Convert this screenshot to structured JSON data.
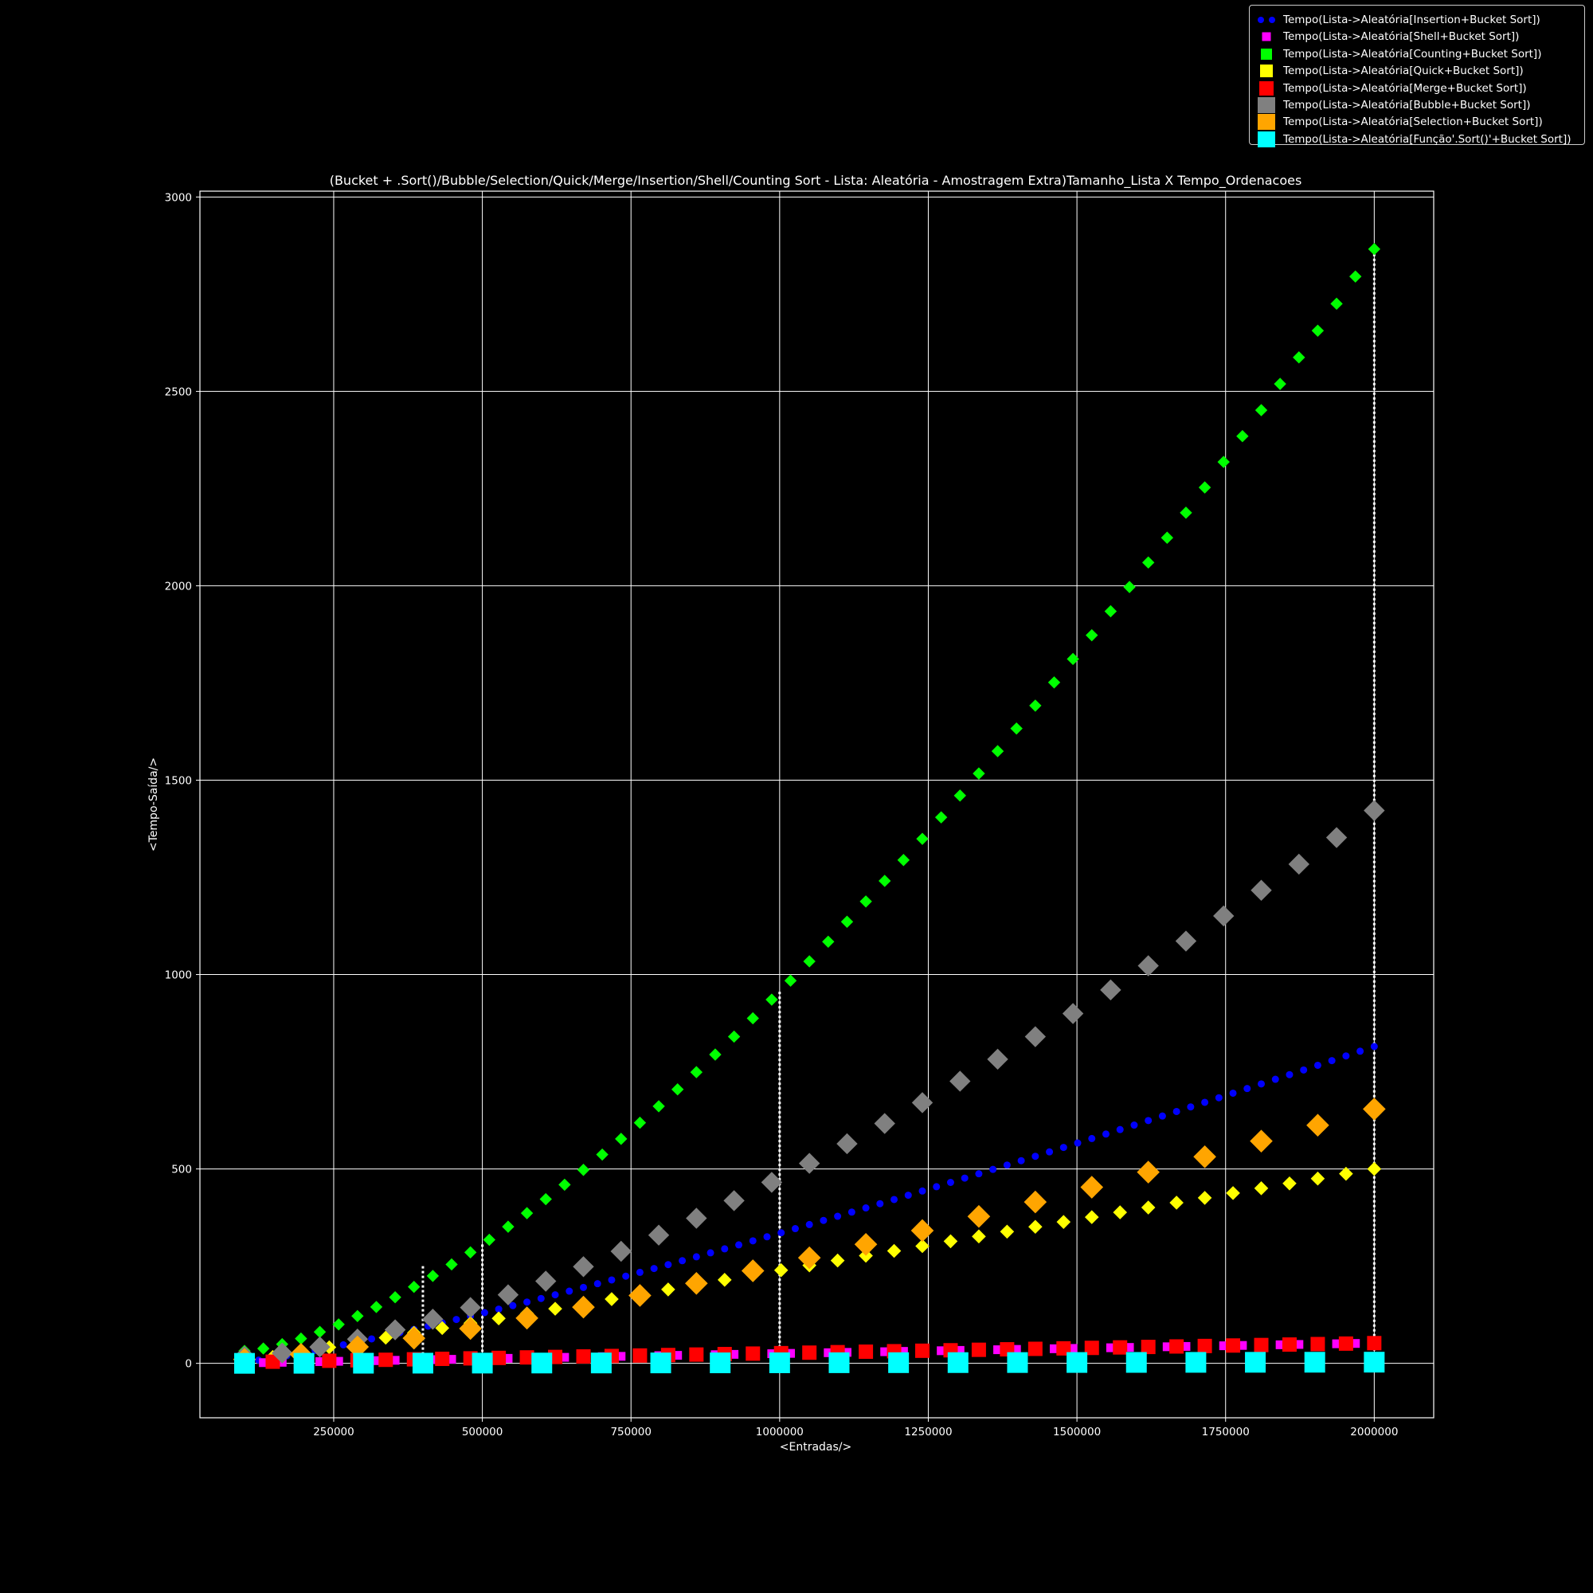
{
  "chart_data": {
    "type": "scatter",
    "title": "(Bucket + .Sort()/Bubble/Selection/Quick/Merge/Insertion/Shell/Counting Sort - Lista: Aleatória - Amostragem Extra)Tamanho_Lista X Tempo_Ordenacoes",
    "xlabel": "<Entradas/>",
    "ylabel": "<Tempo-Saída/>",
    "xlim": [
      25000,
      2100000
    ],
    "ylim": [
      -140,
      3015
    ],
    "xticks": [
      250000,
      500000,
      750000,
      1000000,
      1250000,
      1500000,
      1750000,
      2000000
    ],
    "xtick_labels": [
      "250000",
      "500000",
      "750000",
      "1000000",
      "1250000",
      "1500000",
      "1750000",
      "2000000"
    ],
    "yticks": [
      0,
      500,
      1000,
      1500,
      2000,
      2500,
      3000
    ],
    "ytick_labels": [
      "0",
      "500",
      "1000",
      "1500",
      "2000",
      "2500",
      "3000"
    ],
    "grid": true,
    "legend_position": "top-right",
    "vertical_lines_x": [
      400000,
      500000,
      1000000,
      2000000
    ],
    "series": [
      {
        "name": "Tempo(Lista->Aleatória[Insertion+Bucket Sort])",
        "color": "#0000ff",
        "marker": "circle",
        "size": 9,
        "x_start": 100000,
        "x_end": 2000000,
        "count": 81,
        "y_start": 4,
        "y_end": 815,
        "exponent": 1.2
      },
      {
        "name": "Tempo(Lista->Aleatória[Shell+Bucket Sort])",
        "color": "#ff00ff",
        "marker": "square",
        "size": 11,
        "x_start": 100000,
        "x_end": 2000000,
        "count": 61,
        "y_start": 1,
        "y_end": 52,
        "exponent": 1.0
      },
      {
        "name": "Tempo(Lista->Aleatória[Counting+Bucket Sort])",
        "color": "#00ff00",
        "marker": "diamond",
        "size": 14,
        "x_start": 100000,
        "x_end": 2000000,
        "count": 61,
        "y_start": 32,
        "y_end": 2866,
        "exponent": 1.5
      },
      {
        "name": "Tempo(Lista->Aleatória[Quick+Bucket Sort])",
        "color": "#ffff00",
        "marker": "diamond",
        "size": 16,
        "x_start": 100000,
        "x_end": 2000000,
        "count": 41,
        "y_start": 4,
        "y_end": 500,
        "exponent": 1.0
      },
      {
        "name": "Tempo(Lista->Aleatória[Merge+Bucket Sort])",
        "color": "#ff0000",
        "marker": "square",
        "size": 18,
        "x_start": 100000,
        "x_end": 2000000,
        "count": 41,
        "y_start": 3,
        "y_end": 52,
        "exponent": 1.0
      },
      {
        "name": "Tempo(Lista->Aleatória[Bubble+Bucket Sort])",
        "color": "#808080",
        "marker": "diamond",
        "size": 24,
        "x_start": 100000,
        "x_end": 2000000,
        "count": 31,
        "y_start": 18,
        "y_end": 1422,
        "exponent": 1.5
      },
      {
        "name": "Tempo(Lista->Aleatória[Selection+Bucket Sort])",
        "color": "#ffa500",
        "marker": "diamond",
        "size": 26,
        "x_start": 100000,
        "x_end": 2000000,
        "count": 21,
        "y_start": 10,
        "y_end": 654,
        "exponent": 1.3
      },
      {
        "name": "Tempo(Lista->Aleatória[Função'.Sort()'+Bucket Sort])",
        "color": "#00ffff",
        "marker": "square",
        "size": 26,
        "x_start": 100000,
        "x_end": 2000000,
        "count": 20,
        "y_start": 0,
        "y_end": 3,
        "exponent": 1.0
      }
    ]
  }
}
